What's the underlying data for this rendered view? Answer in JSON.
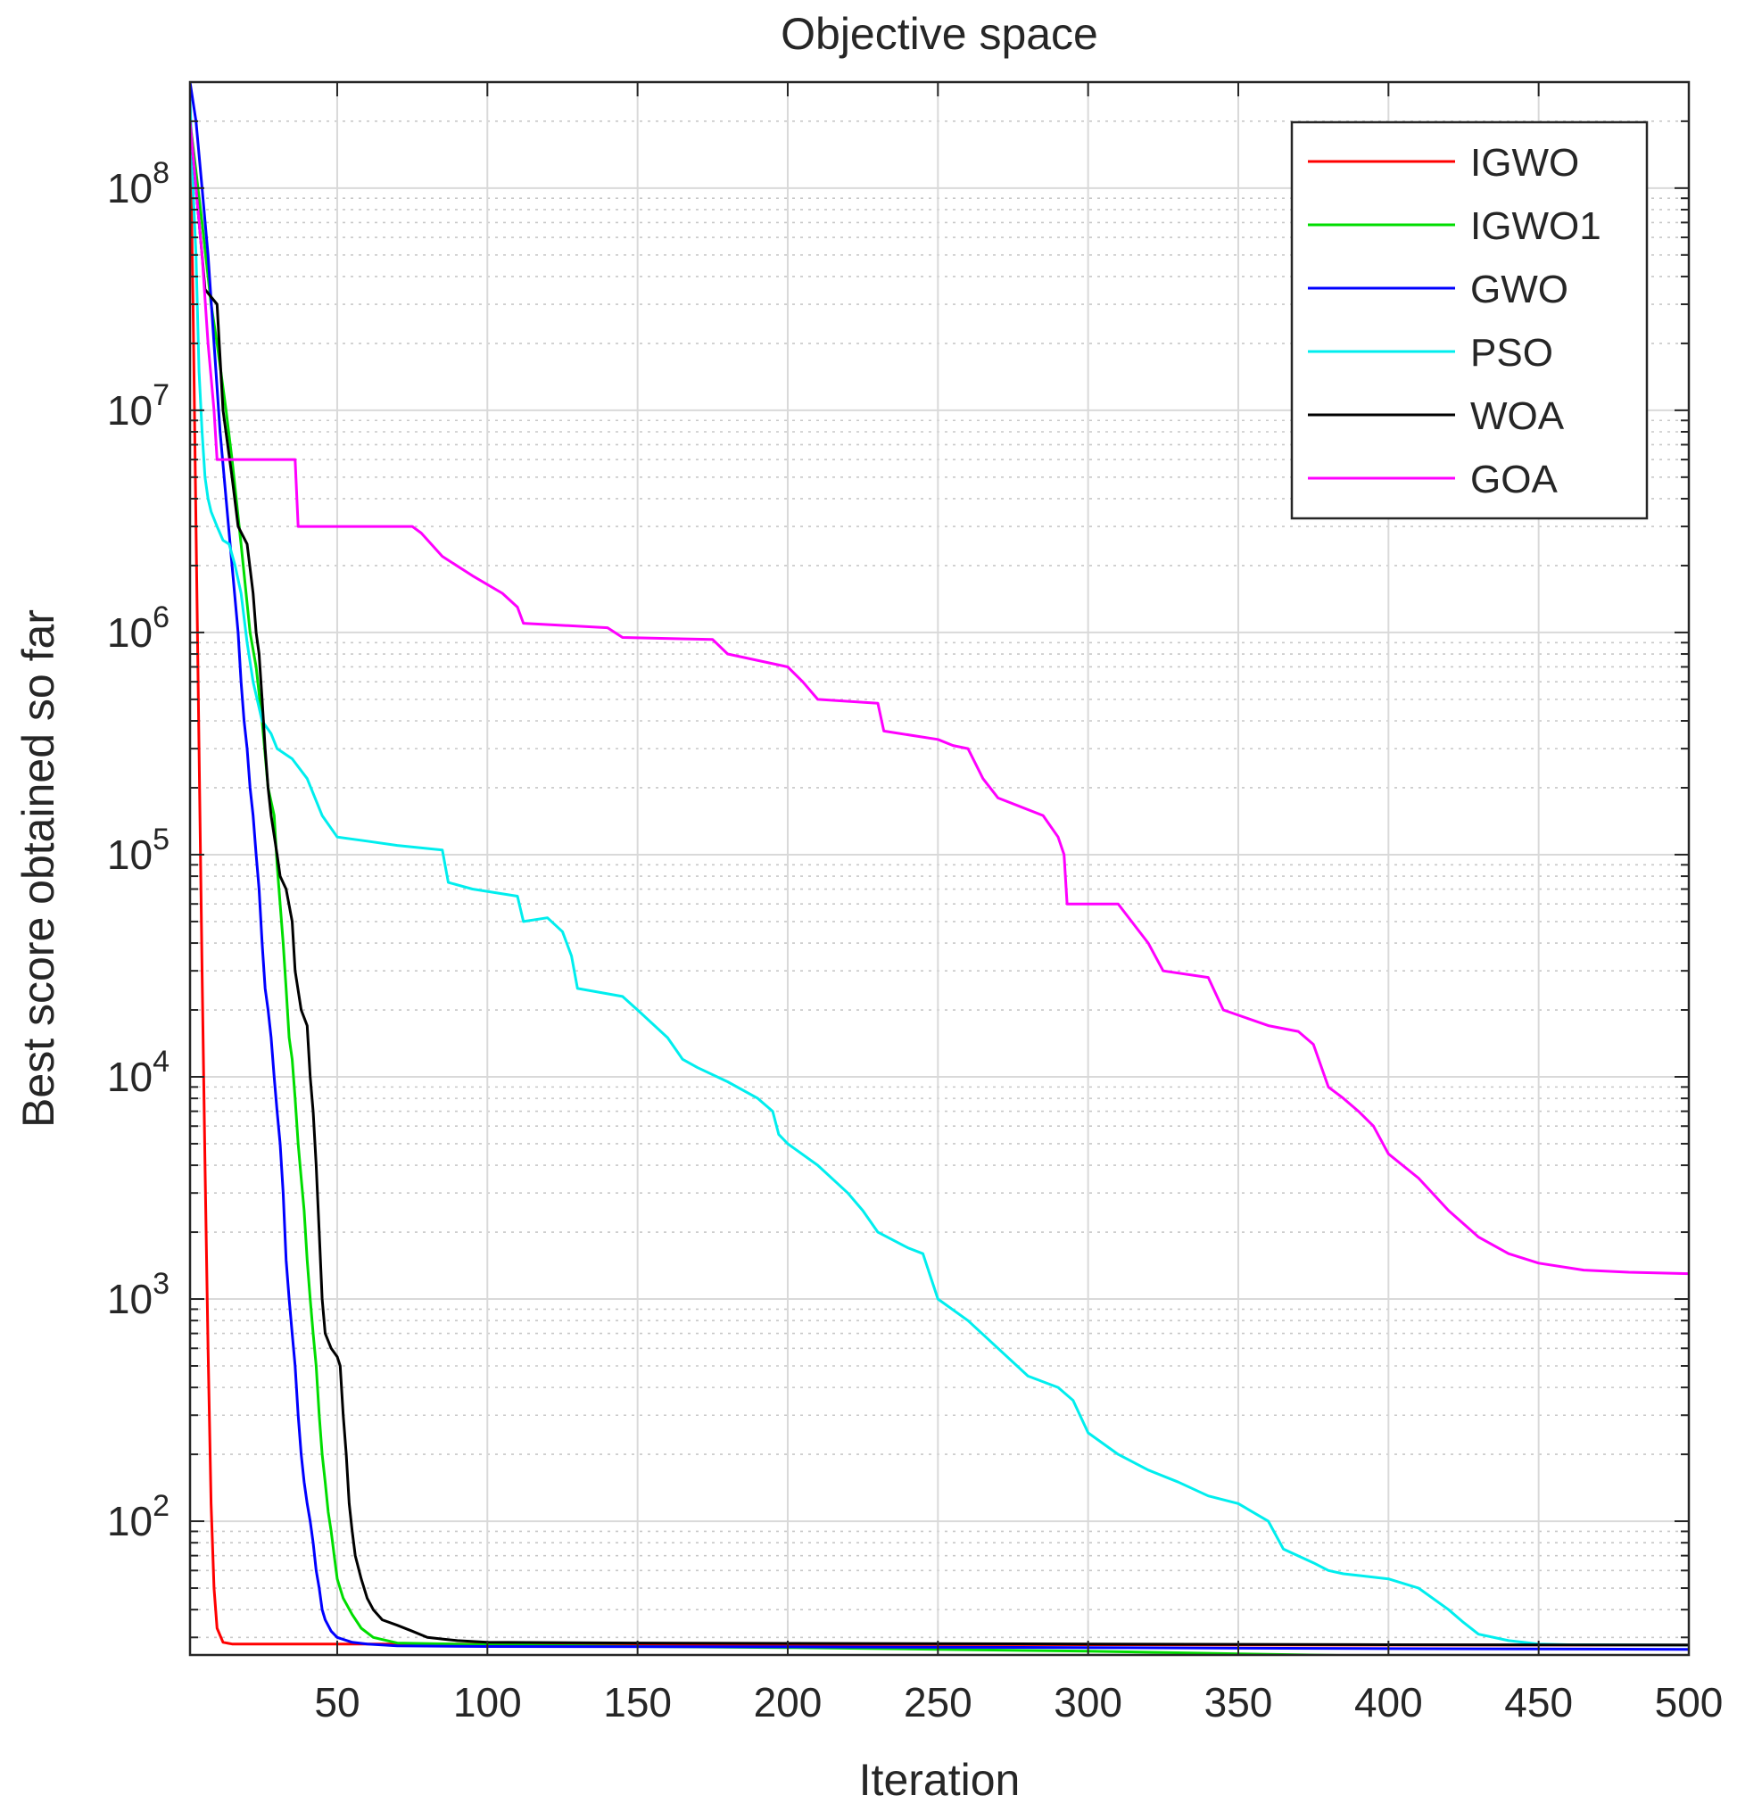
{
  "chart_data": {
    "type": "line",
    "title": "Objective space",
    "xlabel": "Iteration",
    "ylabel": "Best score obtained so far",
    "xlim": [
      1,
      500
    ],
    "ylim": [
      25,
      300000000
    ],
    "yscale": "log",
    "x_ticks": [
      50,
      100,
      150,
      200,
      250,
      300,
      350,
      400,
      450,
      500
    ],
    "y_ticks": [
      {
        "value": 100,
        "base": "10",
        "exp": "2"
      },
      {
        "value": 1000,
        "base": "10",
        "exp": "3"
      },
      {
        "value": 10000,
        "base": "10",
        "exp": "4"
      },
      {
        "value": 100000,
        "base": "10",
        "exp": "5"
      },
      {
        "value": 1000000,
        "base": "10",
        "exp": "6"
      },
      {
        "value": 10000000,
        "base": "10",
        "exp": "7"
      },
      {
        "value": 100000000,
        "base": "10",
        "exp": "8"
      }
    ],
    "grid": true,
    "legend_position": "top-right",
    "series": [
      {
        "name": "IGWO",
        "color": "#ff0000",
        "points": [
          [
            1,
            200000000
          ],
          [
            2,
            30000000
          ],
          [
            3,
            3000000
          ],
          [
            4,
            300000
          ],
          [
            5,
            30000
          ],
          [
            6,
            4000
          ],
          [
            7,
            600
          ],
          [
            8,
            120
          ],
          [
            9,
            50
          ],
          [
            10,
            33
          ],
          [
            12,
            28.5
          ],
          [
            15,
            28
          ],
          [
            50,
            28
          ],
          [
            100,
            28
          ],
          [
            200,
            27.9
          ],
          [
            300,
            27.8
          ],
          [
            400,
            27.7
          ],
          [
            500,
            27.7
          ]
        ]
      },
      {
        "name": "IGWO1",
        "color": "#00dd00",
        "points": [
          [
            1,
            200000000
          ],
          [
            5,
            70000000
          ],
          [
            8,
            30000000
          ],
          [
            10,
            20000000
          ],
          [
            13,
            10000000
          ],
          [
            15,
            6000000
          ],
          [
            18,
            2500000
          ],
          [
            21,
            1000000
          ],
          [
            23,
            700000
          ],
          [
            25,
            400000
          ],
          [
            27,
            200000
          ],
          [
            29,
            150000
          ],
          [
            30,
            90000
          ],
          [
            31,
            60000
          ],
          [
            32,
            40000
          ],
          [
            33,
            25000
          ],
          [
            34,
            15000
          ],
          [
            35,
            12000
          ],
          [
            36,
            8000
          ],
          [
            37,
            5000
          ],
          [
            38,
            3500
          ],
          [
            39,
            2500
          ],
          [
            40,
            1500
          ],
          [
            41,
            1000
          ],
          [
            42,
            700
          ],
          [
            43,
            500
          ],
          [
            44,
            300
          ],
          [
            45,
            200
          ],
          [
            46,
            150
          ],
          [
            47,
            110
          ],
          [
            48,
            90
          ],
          [
            49,
            70
          ],
          [
            50,
            55
          ],
          [
            52,
            45
          ],
          [
            55,
            38
          ],
          [
            58,
            33
          ],
          [
            62,
            30
          ],
          [
            70,
            28.3
          ],
          [
            100,
            27.8
          ],
          [
            150,
            27.3
          ],
          [
            200,
            27
          ],
          [
            250,
            26.5
          ],
          [
            300,
            26
          ],
          [
            350,
            25.3
          ],
          [
            400,
            24.7
          ],
          [
            450,
            24.3
          ],
          [
            500,
            24
          ]
        ]
      },
      {
        "name": "GWO",
        "color": "#0000ff",
        "points": [
          [
            1,
            300000000
          ],
          [
            3,
            200000000
          ],
          [
            5,
            100000000
          ],
          [
            7,
            50000000
          ],
          [
            9,
            20000000
          ],
          [
            11,
            8000000
          ],
          [
            13,
            4000000
          ],
          [
            15,
            2000000
          ],
          [
            17,
            1000000
          ],
          [
            18,
            600000
          ],
          [
            19,
            400000
          ],
          [
            20,
            300000
          ],
          [
            21,
            200000
          ],
          [
            22,
            150000
          ],
          [
            23,
            100000
          ],
          [
            24,
            70000
          ],
          [
            25,
            40000
          ],
          [
            26,
            25000
          ],
          [
            27,
            20000
          ],
          [
            28,
            15000
          ],
          [
            29,
            10000
          ],
          [
            30,
            7000
          ],
          [
            31,
            5000
          ],
          [
            32,
            3000
          ],
          [
            33,
            1500
          ],
          [
            34,
            1000
          ],
          [
            35,
            700
          ],
          [
            36,
            500
          ],
          [
            37,
            300
          ],
          [
            38,
            200
          ],
          [
            39,
            150
          ],
          [
            40,
            120
          ],
          [
            41,
            100
          ],
          [
            42,
            80
          ],
          [
            43,
            60
          ],
          [
            44,
            50
          ],
          [
            45,
            40
          ],
          [
            46,
            36
          ],
          [
            48,
            32
          ],
          [
            50,
            30
          ],
          [
            55,
            28.5
          ],
          [
            60,
            28
          ],
          [
            70,
            27.5
          ],
          [
            100,
            27.3
          ],
          [
            200,
            27.2
          ],
          [
            300,
            27
          ],
          [
            400,
            26.7
          ],
          [
            500,
            26.5
          ]
        ]
      },
      {
        "name": "PSO",
        "color": "#00eeee",
        "points": [
          [
            1,
            250000000
          ],
          [
            2,
            100000000
          ],
          [
            3,
            50000000
          ],
          [
            4,
            15000000
          ],
          [
            5,
            8000000
          ],
          [
            6,
            5000000
          ],
          [
            7,
            4000000
          ],
          [
            8,
            3500000
          ],
          [
            10,
            3000000
          ],
          [
            12,
            2600000
          ],
          [
            14,
            2500000
          ],
          [
            16,
            2000000
          ],
          [
            18,
            1500000
          ],
          [
            20,
            900000
          ],
          [
            22,
            600000
          ],
          [
            25,
            400000
          ],
          [
            28,
            350000
          ],
          [
            30,
            300000
          ],
          [
            35,
            270000
          ],
          [
            40,
            220000
          ],
          [
            45,
            150000
          ],
          [
            50,
            120000
          ],
          [
            60,
            115000
          ],
          [
            70,
            110000
          ],
          [
            85,
            105000
          ],
          [
            87,
            75000
          ],
          [
            95,
            70000
          ],
          [
            110,
            65000
          ],
          [
            112,
            50000
          ],
          [
            120,
            52000
          ],
          [
            125,
            45000
          ],
          [
            128,
            35000
          ],
          [
            130,
            25000
          ],
          [
            145,
            23000
          ],
          [
            150,
            20000
          ],
          [
            160,
            15000
          ],
          [
            165,
            12000
          ],
          [
            170,
            11000
          ],
          [
            180,
            9500
          ],
          [
            190,
            8000
          ],
          [
            195,
            7000
          ],
          [
            197,
            5500
          ],
          [
            200,
            5000
          ],
          [
            210,
            4000
          ],
          [
            220,
            3000
          ],
          [
            225,
            2500
          ],
          [
            230,
            2000
          ],
          [
            240,
            1700
          ],
          [
            245,
            1600
          ],
          [
            250,
            1000
          ],
          [
            260,
            800
          ],
          [
            270,
            600
          ],
          [
            280,
            450
          ],
          [
            290,
            400
          ],
          [
            295,
            350
          ],
          [
            300,
            250
          ],
          [
            310,
            200
          ],
          [
            320,
            170
          ],
          [
            330,
            150
          ],
          [
            340,
            130
          ],
          [
            350,
            120
          ],
          [
            360,
            100
          ],
          [
            365,
            75
          ],
          [
            375,
            65
          ],
          [
            380,
            60
          ],
          [
            385,
            58
          ],
          [
            390,
            57
          ],
          [
            400,
            55
          ],
          [
            410,
            50
          ],
          [
            420,
            40
          ],
          [
            425,
            35
          ],
          [
            430,
            31
          ],
          [
            440,
            29
          ],
          [
            450,
            28
          ],
          [
            460,
            27.8
          ],
          [
            500,
            27.7
          ]
        ]
      },
      {
        "name": "WOA",
        "color": "#000000",
        "points": [
          [
            1,
            200000000
          ],
          [
            3,
            100000000
          ],
          [
            5,
            50000000
          ],
          [
            6,
            35000000
          ],
          [
            10,
            30000000
          ],
          [
            12,
            10000000
          ],
          [
            15,
            5000000
          ],
          [
            17,
            3000000
          ],
          [
            20,
            2500000
          ],
          [
            22,
            1500000
          ],
          [
            23,
            1000000
          ],
          [
            24,
            800000
          ],
          [
            25,
            500000
          ],
          [
            26,
            300000
          ],
          [
            27,
            200000
          ],
          [
            28,
            150000
          ],
          [
            30,
            100000
          ],
          [
            31,
            80000
          ],
          [
            33,
            70000
          ],
          [
            35,
            50000
          ],
          [
            36,
            30000
          ],
          [
            38,
            20000
          ],
          [
            40,
            17000
          ],
          [
            41,
            10000
          ],
          [
            42,
            7000
          ],
          [
            43,
            4000
          ],
          [
            44,
            2000
          ],
          [
            45,
            1000
          ],
          [
            46,
            700
          ],
          [
            48,
            600
          ],
          [
            50,
            550
          ],
          [
            51,
            500
          ],
          [
            52,
            300
          ],
          [
            53,
            200
          ],
          [
            54,
            120
          ],
          [
            55,
            90
          ],
          [
            56,
            70
          ],
          [
            58,
            55
          ],
          [
            60,
            45
          ],
          [
            62,
            40
          ],
          [
            65,
            36
          ],
          [
            70,
            34
          ],
          [
            75,
            32
          ],
          [
            80,
            30
          ],
          [
            85,
            29.5
          ],
          [
            90,
            29
          ],
          [
            100,
            28.5
          ],
          [
            150,
            28.3
          ],
          [
            200,
            28.2
          ],
          [
            300,
            28
          ],
          [
            400,
            27.8
          ],
          [
            500,
            27.7
          ]
        ]
      },
      {
        "name": "GOA",
        "color": "#ff00ff",
        "points": [
          [
            1,
            200000000
          ],
          [
            3,
            100000000
          ],
          [
            5,
            50000000
          ],
          [
            7,
            20000000
          ],
          [
            9,
            10000000
          ],
          [
            10,
            6000000
          ],
          [
            36,
            6000000
          ],
          [
            37,
            3000000
          ],
          [
            75,
            3000000
          ],
          [
            78,
            2800000
          ],
          [
            85,
            2200000
          ],
          [
            95,
            1800000
          ],
          [
            105,
            1500000
          ],
          [
            110,
            1300000
          ],
          [
            112,
            1100000
          ],
          [
            140,
            1050000
          ],
          [
            145,
            950000
          ],
          [
            175,
            930000
          ],
          [
            180,
            800000
          ],
          [
            200,
            700000
          ],
          [
            205,
            600000
          ],
          [
            210,
            500000
          ],
          [
            230,
            480000
          ],
          [
            232,
            360000
          ],
          [
            250,
            330000
          ],
          [
            255,
            310000
          ],
          [
            260,
            300000
          ],
          [
            265,
            220000
          ],
          [
            270,
            180000
          ],
          [
            285,
            150000
          ],
          [
            290,
            120000
          ],
          [
            292,
            100000
          ],
          [
            293,
            60000
          ],
          [
            310,
            60000
          ],
          [
            320,
            40000
          ],
          [
            325,
            30000
          ],
          [
            340,
            28000
          ],
          [
            345,
            20000
          ],
          [
            360,
            17000
          ],
          [
            370,
            16000
          ],
          [
            375,
            14000
          ],
          [
            380,
            9000
          ],
          [
            385,
            8000
          ],
          [
            390,
            7000
          ],
          [
            395,
            6000
          ],
          [
            400,
            4500
          ],
          [
            410,
            3500
          ],
          [
            420,
            2500
          ],
          [
            430,
            1900
          ],
          [
            440,
            1600
          ],
          [
            450,
            1450
          ],
          [
            465,
            1350
          ],
          [
            480,
            1320
          ],
          [
            500,
            1300
          ]
        ]
      }
    ]
  }
}
